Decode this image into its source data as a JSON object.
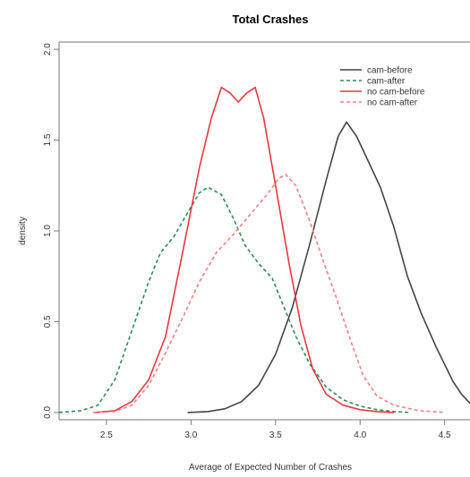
{
  "chart_data": {
    "type": "line",
    "title": "Total Crashes",
    "xlabel": "Average of Expected Number of Crashes",
    "ylabel": "density",
    "xlim": [
      2.22,
      4.65
    ],
    "ylim": [
      -0.04,
      2.04
    ],
    "xticks": [
      "2.5",
      "3.0",
      "3.5",
      "4.0",
      "4.5"
    ],
    "yticks": [
      "0.0",
      "0.5",
      "1.0",
      "1.5",
      "2.0"
    ],
    "legend_position": "top-right",
    "series": [
      {
        "name": "cam-before",
        "color": "#444444",
        "dash": "solid",
        "points": [
          [
            2.98,
            0.0
          ],
          [
            3.1,
            0.005
          ],
          [
            3.2,
            0.02
          ],
          [
            3.3,
            0.06
          ],
          [
            3.4,
            0.15
          ],
          [
            3.5,
            0.32
          ],
          [
            3.6,
            0.58
          ],
          [
            3.7,
            0.92
          ],
          [
            3.8,
            1.28
          ],
          [
            3.87,
            1.52
          ],
          [
            3.92,
            1.6
          ],
          [
            3.98,
            1.52
          ],
          [
            4.05,
            1.38
          ],
          [
            4.12,
            1.24
          ],
          [
            4.2,
            1.02
          ],
          [
            4.28,
            0.75
          ],
          [
            4.36,
            0.55
          ],
          [
            4.45,
            0.36
          ],
          [
            4.55,
            0.17
          ],
          [
            4.6,
            0.1
          ],
          [
            4.65,
            0.05
          ]
        ]
      },
      {
        "name": "cam-after",
        "color": "#2e8b57",
        "dash": "dashed",
        "points": [
          [
            2.22,
            0.0
          ],
          [
            2.35,
            0.01
          ],
          [
            2.45,
            0.04
          ],
          [
            2.55,
            0.18
          ],
          [
            2.65,
            0.45
          ],
          [
            2.75,
            0.72
          ],
          [
            2.82,
            0.88
          ],
          [
            2.9,
            0.97
          ],
          [
            2.98,
            1.1
          ],
          [
            3.05,
            1.21
          ],
          [
            3.1,
            1.24
          ],
          [
            3.18,
            1.2
          ],
          [
            3.25,
            1.07
          ],
          [
            3.32,
            0.92
          ],
          [
            3.4,
            0.82
          ],
          [
            3.48,
            0.74
          ],
          [
            3.55,
            0.58
          ],
          [
            3.62,
            0.42
          ],
          [
            3.7,
            0.27
          ],
          [
            3.8,
            0.14
          ],
          [
            3.9,
            0.07
          ],
          [
            4.0,
            0.035
          ],
          [
            4.1,
            0.015
          ],
          [
            4.2,
            0.005
          ],
          [
            4.3,
            0.0
          ]
        ]
      },
      {
        "name": "no cam-before",
        "color": "#e8383d",
        "dash": "solid",
        "points": [
          [
            2.43,
            0.0
          ],
          [
            2.55,
            0.01
          ],
          [
            2.65,
            0.06
          ],
          [
            2.75,
            0.18
          ],
          [
            2.85,
            0.42
          ],
          [
            2.95,
            0.88
          ],
          [
            3.05,
            1.35
          ],
          [
            3.12,
            1.62
          ],
          [
            3.18,
            1.79
          ],
          [
            3.23,
            1.76
          ],
          [
            3.28,
            1.71
          ],
          [
            3.33,
            1.76
          ],
          [
            3.38,
            1.79
          ],
          [
            3.43,
            1.62
          ],
          [
            3.5,
            1.25
          ],
          [
            3.58,
            0.82
          ],
          [
            3.65,
            0.48
          ],
          [
            3.72,
            0.24
          ],
          [
            3.8,
            0.1
          ],
          [
            3.9,
            0.04
          ],
          [
            4.0,
            0.015
          ],
          [
            4.1,
            0.005
          ],
          [
            4.2,
            0.0
          ]
        ]
      },
      {
        "name": "no cam-after",
        "color": "#f08080",
        "dash": "dashed",
        "points": [
          [
            2.42,
            0.0
          ],
          [
            2.55,
            0.005
          ],
          [
            2.65,
            0.04
          ],
          [
            2.75,
            0.15
          ],
          [
            2.85,
            0.33
          ],
          [
            2.95,
            0.52
          ],
          [
            3.05,
            0.72
          ],
          [
            3.15,
            0.88
          ],
          [
            3.25,
            0.98
          ],
          [
            3.35,
            1.09
          ],
          [
            3.45,
            1.2
          ],
          [
            3.52,
            1.29
          ],
          [
            3.56,
            1.31
          ],
          [
            3.62,
            1.25
          ],
          [
            3.7,
            1.06
          ],
          [
            3.78,
            0.84
          ],
          [
            3.86,
            0.63
          ],
          [
            3.95,
            0.38
          ],
          [
            4.02,
            0.2
          ],
          [
            4.1,
            0.09
          ],
          [
            4.2,
            0.04
          ],
          [
            4.35,
            0.01
          ],
          [
            4.5,
            0.0
          ]
        ]
      }
    ]
  }
}
